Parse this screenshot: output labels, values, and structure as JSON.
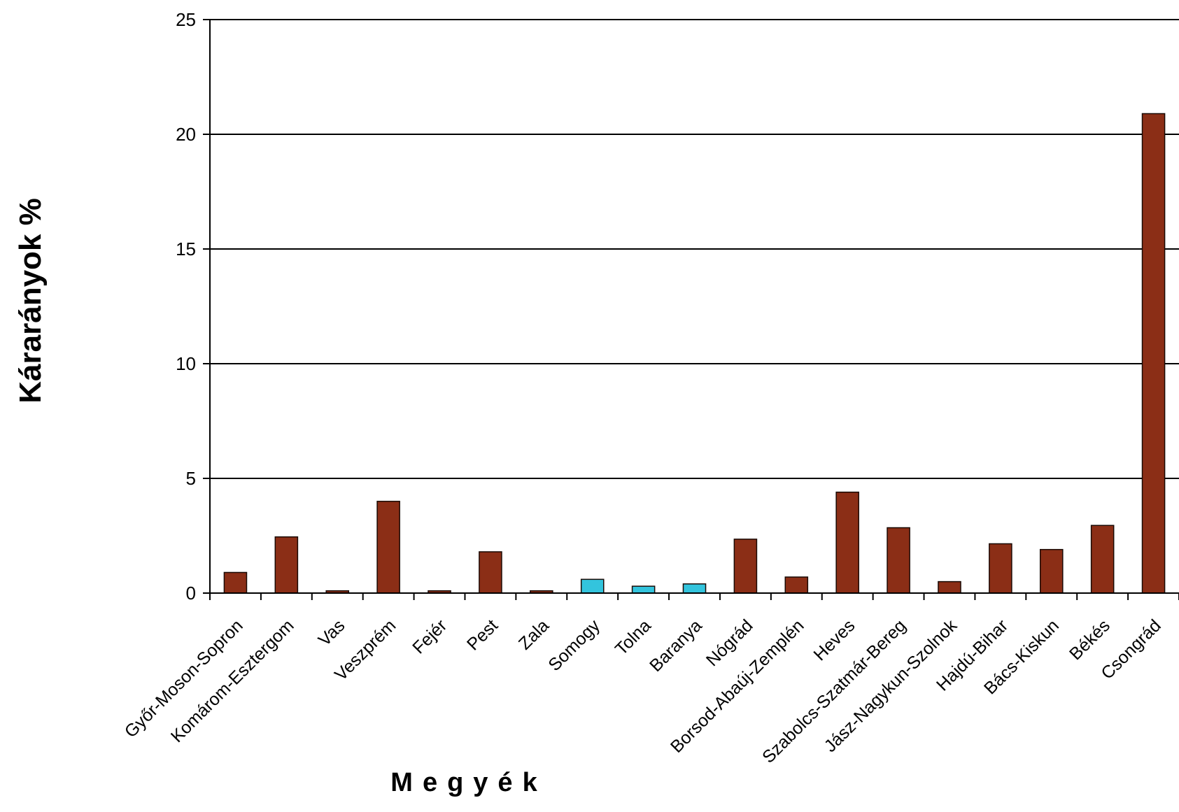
{
  "chart_data": {
    "type": "bar",
    "title": "",
    "xlabel": "Megyék",
    "ylabel": "Kárarányok %",
    "ylim": [
      0,
      25
    ],
    "yticks": [
      0,
      5,
      10,
      15,
      20,
      25
    ],
    "grid": true,
    "legend": "none",
    "categories": [
      "Győr-Moson-Sopron",
      "Komárom-Esztergom",
      "Vas",
      "Veszprém",
      "Fejér",
      "Pest",
      "Zala",
      "Somogy",
      "Tolna",
      "Baranya",
      "Nógrád",
      "Borsod-Abaúj-Zemplén",
      "Heves",
      "Szabolcs-Szatmár-Bereg",
      "Jász-Nagykun-Szolnok",
      "Hajdú-Bihar",
      "Bács-Kiskun",
      "Békés",
      "Csongrád"
    ],
    "values": [
      0.9,
      2.45,
      0.1,
      4.0,
      0.1,
      1.8,
      0.1,
      0.6,
      0.3,
      0.4,
      2.35,
      0.7,
      4.4,
      2.85,
      0.5,
      2.15,
      1.9,
      2.95,
      20.9
    ],
    "bar_colors": [
      "#8b2e16",
      "#8b2e16",
      "#8b2e16",
      "#8b2e16",
      "#8b2e16",
      "#8b2e16",
      "#8b2e16",
      "#33c4dd",
      "#33c4dd",
      "#33c4dd",
      "#8b2e16",
      "#8b2e16",
      "#8b2e16",
      "#8b2e16",
      "#8b2e16",
      "#8b2e16",
      "#8b2e16",
      "#8b2e16",
      "#8b2e16"
    ],
    "colors": {
      "primary_bar": "#8b2e16",
      "highlight_bar": "#33c4dd",
      "gridline": "#000000",
      "axis": "#000000"
    }
  }
}
